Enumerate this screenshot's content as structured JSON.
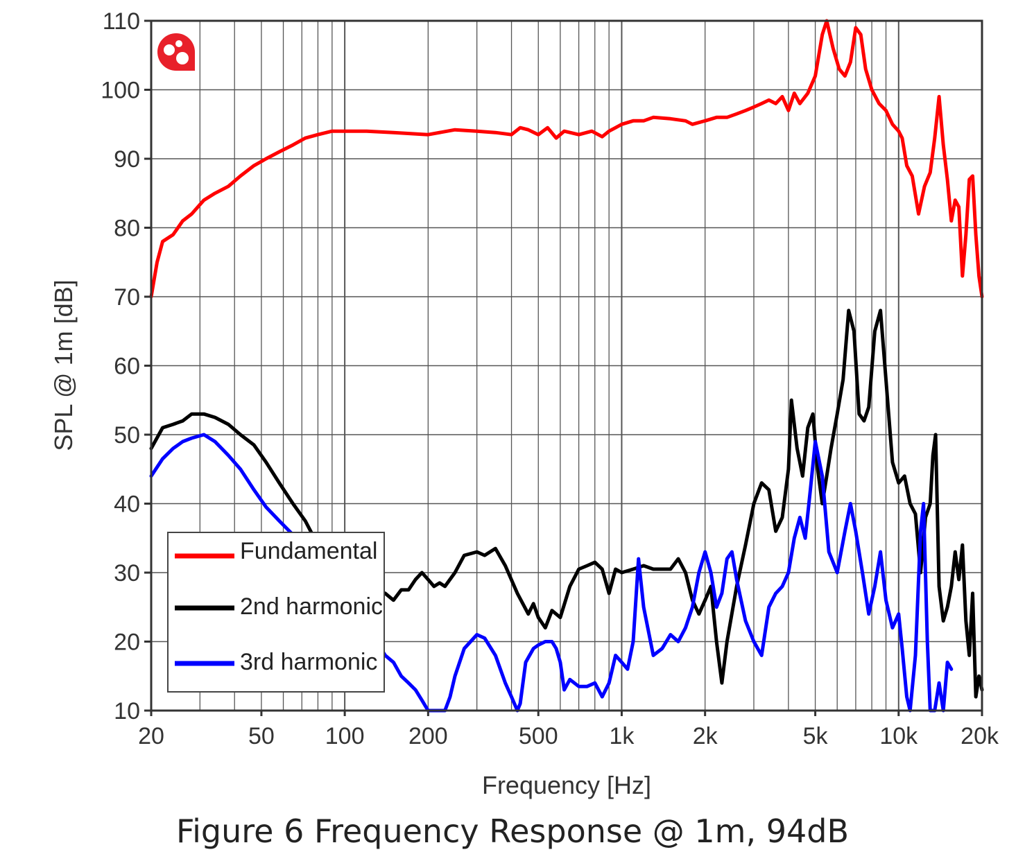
{
  "caption": "Figure 6 Frequency Response @ 1m, 94dB",
  "chart_data": {
    "type": "line",
    "xlabel": "Frequency [Hz]",
    "ylabel": "SPL @ 1m [dB]",
    "xscale": "log",
    "xlim": [
      20,
      20000
    ],
    "ylim": [
      10,
      110
    ],
    "grid": true,
    "legend_position": "bottom-left",
    "x_ticks": [
      {
        "value": 20,
        "label": "20"
      },
      {
        "value": 50,
        "label": "50"
      },
      {
        "value": 100,
        "label": "100"
      },
      {
        "value": 200,
        "label": "200"
      },
      {
        "value": 500,
        "label": "500"
      },
      {
        "value": 1000,
        "label": "1k"
      },
      {
        "value": 2000,
        "label": "2k"
      },
      {
        "value": 5000,
        "label": "5k"
      },
      {
        "value": 10000,
        "label": "10k"
      },
      {
        "value": 20000,
        "label": "20k"
      }
    ],
    "y_ticks": [
      10,
      20,
      30,
      40,
      50,
      60,
      70,
      80,
      90,
      100,
      110
    ],
    "series": [
      {
        "name": "Fundamental",
        "color": "#ff0000",
        "points": [
          [
            20,
            70
          ],
          [
            21,
            75
          ],
          [
            22,
            78
          ],
          [
            24,
            79
          ],
          [
            26,
            81
          ],
          [
            28,
            82
          ],
          [
            31,
            84
          ],
          [
            34,
            85
          ],
          [
            38,
            86
          ],
          [
            42,
            87.5
          ],
          [
            47,
            89
          ],
          [
            52,
            90
          ],
          [
            58,
            91
          ],
          [
            65,
            92
          ],
          [
            72,
            93
          ],
          [
            80,
            93.5
          ],
          [
            90,
            94
          ],
          [
            100,
            94
          ],
          [
            120,
            94
          ],
          [
            150,
            93.8
          ],
          [
            200,
            93.5
          ],
          [
            250,
            94.2
          ],
          [
            300,
            94
          ],
          [
            350,
            93.8
          ],
          [
            400,
            93.5
          ],
          [
            430,
            94.5
          ],
          [
            460,
            94.2
          ],
          [
            500,
            93.5
          ],
          [
            540,
            94.5
          ],
          [
            580,
            93
          ],
          [
            620,
            94
          ],
          [
            700,
            93.5
          ],
          [
            780,
            94
          ],
          [
            850,
            93.2
          ],
          [
            900,
            94
          ],
          [
            950,
            94.5
          ],
          [
            1000,
            95
          ],
          [
            1100,
            95.5
          ],
          [
            1200,
            95.5
          ],
          [
            1300,
            96
          ],
          [
            1500,
            95.8
          ],
          [
            1700,
            95.5
          ],
          [
            1800,
            95
          ],
          [
            2000,
            95.5
          ],
          [
            2200,
            96
          ],
          [
            2400,
            96
          ],
          [
            2600,
            96.5
          ],
          [
            2800,
            97
          ],
          [
            3000,
            97.5
          ],
          [
            3200,
            98
          ],
          [
            3400,
            98.5
          ],
          [
            3600,
            98
          ],
          [
            3800,
            99
          ],
          [
            4000,
            97
          ],
          [
            4200,
            99.5
          ],
          [
            4400,
            98
          ],
          [
            4700,
            99.5
          ],
          [
            5000,
            102
          ],
          [
            5300,
            108
          ],
          [
            5500,
            110
          ],
          [
            5800,
            106
          ],
          [
            6100,
            103
          ],
          [
            6400,
            102
          ],
          [
            6700,
            104
          ],
          [
            7000,
            109
          ],
          [
            7300,
            108
          ],
          [
            7600,
            103
          ],
          [
            8000,
            100
          ],
          [
            8500,
            98
          ],
          [
            9000,
            97
          ],
          [
            9500,
            95
          ],
          [
            10000,
            94
          ],
          [
            10300,
            93
          ],
          [
            10700,
            89
          ],
          [
            11200,
            87.5
          ],
          [
            11800,
            82
          ],
          [
            12400,
            86
          ],
          [
            13000,
            88
          ],
          [
            13500,
            93
          ],
          [
            14000,
            99
          ],
          [
            14500,
            92
          ],
          [
            15000,
            87
          ],
          [
            15500,
            81
          ],
          [
            16000,
            84
          ],
          [
            16500,
            83
          ],
          [
            17000,
            73
          ],
          [
            17500,
            79
          ],
          [
            18000,
            87
          ],
          [
            18500,
            87.5
          ],
          [
            19000,
            79
          ],
          [
            19500,
            73
          ],
          [
            20000,
            70
          ]
        ]
      },
      {
        "name": "2nd harmonic",
        "color": "#000000",
        "points": [
          [
            20,
            48
          ],
          [
            22,
            51
          ],
          [
            24,
            51.5
          ],
          [
            26,
            52
          ],
          [
            28,
            53
          ],
          [
            31,
            53
          ],
          [
            34,
            52.5
          ],
          [
            38,
            51.5
          ],
          [
            42,
            50
          ],
          [
            47,
            48.5
          ],
          [
            52,
            46
          ],
          [
            58,
            43
          ],
          [
            65,
            40
          ],
          [
            72,
            37.5
          ],
          [
            80,
            34
          ],
          [
            90,
            32
          ],
          [
            100,
            31
          ],
          [
            110,
            30
          ],
          [
            120,
            28.5
          ],
          [
            130,
            27.5
          ],
          [
            140,
            27
          ],
          [
            150,
            26
          ],
          [
            160,
            27.5
          ],
          [
            170,
            27.5
          ],
          [
            180,
            29
          ],
          [
            190,
            30
          ],
          [
            200,
            29
          ],
          [
            210,
            28
          ],
          [
            220,
            28.5
          ],
          [
            230,
            28
          ],
          [
            250,
            30
          ],
          [
            270,
            32.5
          ],
          [
            300,
            33
          ],
          [
            320,
            32.5
          ],
          [
            350,
            33.5
          ],
          [
            380,
            31
          ],
          [
            420,
            27
          ],
          [
            460,
            24
          ],
          [
            480,
            25.5
          ],
          [
            500,
            23.5
          ],
          [
            530,
            22
          ],
          [
            560,
            24.5
          ],
          [
            600,
            23.5
          ],
          [
            650,
            28
          ],
          [
            700,
            30.5
          ],
          [
            750,
            31
          ],
          [
            800,
            31.5
          ],
          [
            850,
            30.5
          ],
          [
            900,
            27
          ],
          [
            950,
            30.5
          ],
          [
            1000,
            30
          ],
          [
            1100,
            30.5
          ],
          [
            1200,
            31
          ],
          [
            1300,
            30.5
          ],
          [
            1400,
            30.5
          ],
          [
            1500,
            30.5
          ],
          [
            1600,
            32
          ],
          [
            1700,
            30
          ],
          [
            1800,
            26
          ],
          [
            1900,
            24
          ],
          [
            2000,
            26
          ],
          [
            2100,
            28
          ],
          [
            2200,
            20
          ],
          [
            2300,
            14
          ],
          [
            2400,
            20
          ],
          [
            2600,
            28
          ],
          [
            2800,
            34
          ],
          [
            3000,
            40
          ],
          [
            3200,
            43
          ],
          [
            3400,
            42
          ],
          [
            3600,
            36
          ],
          [
            3800,
            38
          ],
          [
            4000,
            45
          ],
          [
            4100,
            55
          ],
          [
            4300,
            48
          ],
          [
            4500,
            44
          ],
          [
            4700,
            51
          ],
          [
            4900,
            53
          ],
          [
            5100,
            45
          ],
          [
            5300,
            40
          ],
          [
            5500,
            44
          ],
          [
            5700,
            48
          ],
          [
            6000,
            53
          ],
          [
            6300,
            58
          ],
          [
            6600,
            68
          ],
          [
            6900,
            65
          ],
          [
            7200,
            53
          ],
          [
            7500,
            52
          ],
          [
            7800,
            54
          ],
          [
            8200,
            65
          ],
          [
            8600,
            68
          ],
          [
            9000,
            58
          ],
          [
            9500,
            46
          ],
          [
            10000,
            43
          ],
          [
            10500,
            44
          ],
          [
            11000,
            40
          ],
          [
            11500,
            38.5
          ],
          [
            12000,
            30
          ],
          [
            12500,
            38
          ],
          [
            13000,
            40
          ],
          [
            13300,
            47
          ],
          [
            13600,
            50
          ],
          [
            14000,
            28
          ],
          [
            14500,
            23
          ],
          [
            15000,
            25
          ],
          [
            15500,
            28
          ],
          [
            16000,
            33
          ],
          [
            16500,
            29
          ],
          [
            17000,
            34
          ],
          [
            17500,
            23
          ],
          [
            18000,
            18
          ],
          [
            18500,
            27
          ],
          [
            19000,
            12
          ],
          [
            19500,
            15
          ],
          [
            20000,
            13
          ]
        ]
      },
      {
        "name": "3rd harmonic",
        "color": "#0000ff",
        "points": [
          [
            20,
            44
          ],
          [
            22,
            46.5
          ],
          [
            24,
            48
          ],
          [
            26,
            49
          ],
          [
            28,
            49.5
          ],
          [
            31,
            50
          ],
          [
            34,
            49
          ],
          [
            38,
            47
          ],
          [
            42,
            45
          ],
          [
            47,
            42
          ],
          [
            52,
            39.5
          ],
          [
            58,
            37.5
          ],
          [
            65,
            35.5
          ],
          [
            72,
            34
          ],
          [
            80,
            32
          ],
          [
            90,
            30
          ],
          [
            100,
            28
          ],
          [
            110,
            26
          ],
          [
            120,
            23
          ],
          [
            130,
            20
          ],
          [
            140,
            18
          ],
          [
            150,
            17
          ],
          [
            160,
            15
          ],
          [
            170,
            14
          ],
          [
            180,
            13
          ],
          [
            190,
            11.5
          ],
          [
            200,
            10
          ],
          [
            210,
            10
          ],
          [
            220,
            10
          ],
          [
            230,
            10
          ],
          [
            240,
            12
          ],
          [
            250,
            15
          ],
          [
            270,
            19
          ],
          [
            300,
            21
          ],
          [
            320,
            20.5
          ],
          [
            350,
            18
          ],
          [
            380,
            14
          ],
          [
            400,
            12
          ],
          [
            420,
            10
          ],
          [
            430,
            11
          ],
          [
            450,
            17
          ],
          [
            480,
            19
          ],
          [
            500,
            19.5
          ],
          [
            530,
            20
          ],
          [
            560,
            20
          ],
          [
            580,
            19
          ],
          [
            600,
            17
          ],
          [
            620,
            13
          ],
          [
            650,
            14.5
          ],
          [
            700,
            13.5
          ],
          [
            750,
            13.5
          ],
          [
            800,
            14
          ],
          [
            850,
            12
          ],
          [
            900,
            14
          ],
          [
            950,
            18
          ],
          [
            1000,
            17
          ],
          [
            1050,
            16
          ],
          [
            1100,
            20
          ],
          [
            1150,
            32
          ],
          [
            1200,
            25
          ],
          [
            1300,
            18
          ],
          [
            1400,
            19
          ],
          [
            1500,
            21
          ],
          [
            1600,
            20
          ],
          [
            1700,
            22
          ],
          [
            1800,
            25
          ],
          [
            1900,
            30
          ],
          [
            2000,
            33
          ],
          [
            2100,
            30
          ],
          [
            2200,
            25
          ],
          [
            2300,
            27
          ],
          [
            2400,
            32
          ],
          [
            2500,
            33
          ],
          [
            2600,
            29
          ],
          [
            2800,
            23
          ],
          [
            3000,
            20
          ],
          [
            3200,
            18
          ],
          [
            3400,
            25
          ],
          [
            3600,
            27
          ],
          [
            3800,
            28
          ],
          [
            4000,
            30
          ],
          [
            4200,
            35
          ],
          [
            4400,
            38
          ],
          [
            4600,
            35
          ],
          [
            4800,
            42
          ],
          [
            5000,
            49
          ],
          [
            5300,
            44
          ],
          [
            5600,
            33
          ],
          [
            6000,
            30
          ],
          [
            6400,
            36
          ],
          [
            6700,
            40
          ],
          [
            7000,
            36
          ],
          [
            7400,
            30
          ],
          [
            7800,
            24
          ],
          [
            8200,
            28
          ],
          [
            8600,
            33
          ],
          [
            9000,
            26
          ],
          [
            9500,
            22
          ],
          [
            10000,
            24
          ],
          [
            10300,
            19
          ],
          [
            10700,
            12
          ],
          [
            11000,
            10
          ],
          [
            11500,
            18
          ],
          [
            12000,
            36
          ],
          [
            12300,
            40
          ],
          [
            12700,
            20
          ],
          [
            13000,
            10
          ],
          [
            13500,
            10
          ],
          [
            14000,
            14
          ],
          [
            14500,
            10
          ],
          [
            15000,
            17
          ],
          [
            15500,
            16
          ]
        ]
      }
    ]
  }
}
